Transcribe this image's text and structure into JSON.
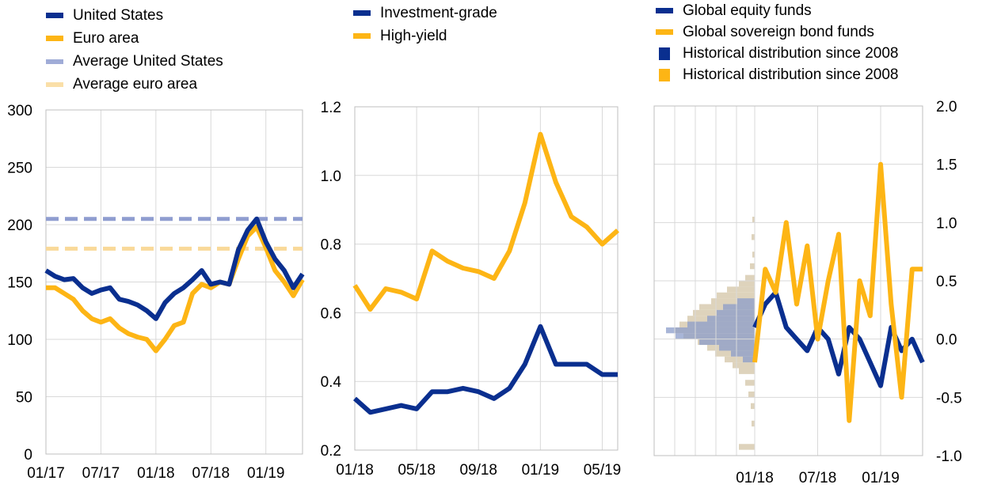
{
  "colors": {
    "us": "#0a2f8f",
    "ea": "#fdb515",
    "avg_us": "#8f9dd0",
    "avg_ea": "#f9d999",
    "hist_blue": "#8b9cc9",
    "hist_beige": "#d8cbb0",
    "grid": "#d9d9d9"
  },
  "chart_data": [
    {
      "type": "line",
      "legend": [
        "United States",
        "Euro area",
        "Average United States",
        "Average euro area"
      ],
      "ylim": [
        0,
        300
      ],
      "yticks": [
        "300",
        "250",
        "200",
        "150",
        "100",
        "50",
        "0"
      ],
      "xticks": [
        "01/17",
        "07/17",
        "01/18",
        "07/18",
        "01/19"
      ],
      "x": [
        "01/17",
        "02/17",
        "03/17",
        "04/17",
        "05/17",
        "06/17",
        "07/17",
        "08/17",
        "09/17",
        "10/17",
        "11/17",
        "12/17",
        "01/18",
        "02/18",
        "03/18",
        "04/18",
        "05/18",
        "06/18",
        "07/18",
        "08/18",
        "09/18",
        "10/18",
        "11/18",
        "12/18",
        "01/19",
        "02/19",
        "03/19",
        "04/19",
        "05/19"
      ],
      "series": [
        {
          "name": "United States",
          "values": [
            160,
            155,
            152,
            153,
            145,
            140,
            143,
            145,
            135,
            133,
            130,
            125,
            118,
            132,
            140,
            145,
            152,
            160,
            148,
            150,
            148,
            178,
            195,
            205,
            185,
            170,
            160,
            145,
            157
          ]
        },
        {
          "name": "Euro area",
          "values": [
            145,
            145,
            140,
            135,
            125,
            118,
            115,
            118,
            110,
            105,
            102,
            100,
            90,
            100,
            112,
            115,
            140,
            148,
            145,
            150,
            148,
            170,
            190,
            198,
            180,
            160,
            150,
            138,
            152
          ]
        },
        {
          "name": "Average United States",
          "values": [
            205,
            205,
            205,
            205,
            205,
            205,
            205,
            205,
            205,
            205,
            205,
            205,
            205,
            205,
            205,
            205,
            205,
            205,
            205,
            205,
            205,
            205,
            205,
            205,
            205,
            205,
            205,
            205,
            205
          ]
        },
        {
          "name": "Average euro area",
          "values": [
            179,
            179,
            179,
            179,
            179,
            179,
            179,
            179,
            179,
            179,
            179,
            179,
            179,
            179,
            179,
            179,
            179,
            179,
            179,
            179,
            179,
            179,
            179,
            179,
            179,
            179,
            179,
            179,
            179
          ]
        }
      ]
    },
    {
      "type": "line",
      "legend": [
        "Investment-grade",
        "High-yield"
      ],
      "ylim": [
        0.2,
        1.2
      ],
      "yticks": [
        "1.2",
        "1.0",
        "0.8",
        "0.6",
        "0.4",
        "0.2"
      ],
      "xticks": [
        "01/18",
        "05/18",
        "09/18",
        "01/19",
        "05/19"
      ],
      "x": [
        "01/18",
        "02/18",
        "03/18",
        "04/18",
        "05/18",
        "06/18",
        "07/18",
        "08/18",
        "09/18",
        "10/18",
        "11/18",
        "12/18",
        "01/19",
        "02/19",
        "03/19",
        "04/19",
        "05/19",
        "06/19"
      ],
      "series": [
        {
          "name": "Investment-grade",
          "values": [
            0.35,
            0.31,
            0.32,
            0.33,
            0.32,
            0.37,
            0.37,
            0.38,
            0.37,
            0.35,
            0.38,
            0.45,
            0.56,
            0.45,
            0.45,
            0.45,
            0.42,
            0.42
          ]
        },
        {
          "name": "High-yield",
          "values": [
            0.68,
            0.61,
            0.67,
            0.66,
            0.64,
            0.78,
            0.75,
            0.73,
            0.72,
            0.7,
            0.78,
            0.92,
            1.12,
            0.98,
            0.88,
            0.85,
            0.8,
            0.84
          ]
        }
      ]
    },
    {
      "type": "line",
      "legend": [
        "Global equity funds",
        "Global sovereign bond funds",
        "Historical distribution since 2008",
        "Historical distribution since 2008"
      ],
      "ylim": [
        -1.0,
        2.0
      ],
      "yticks": [
        "2.0",
        "1.5",
        "1.0",
        "0.5",
        "0.0",
        "-0.5",
        "-1.0"
      ],
      "xticks": [
        "01/18",
        "07/18",
        "01/19"
      ],
      "x": [
        "01/18",
        "02/18",
        "03/18",
        "04/18",
        "05/18",
        "06/18",
        "07/18",
        "08/18",
        "09/18",
        "10/18",
        "11/18",
        "12/18",
        "01/19",
        "02/19",
        "03/19",
        "04/19",
        "05/19"
      ],
      "series": [
        {
          "name": "Global equity funds",
          "values": [
            0.1,
            0.3,
            0.4,
            0.1,
            0.0,
            -0.1,
            0.1,
            0.0,
            -0.3,
            0.1,
            0.0,
            -0.2,
            -0.4,
            0.1,
            -0.1,
            0.0,
            -0.2
          ]
        },
        {
          "name": "Global sovereign bond funds",
          "values": [
            -0.2,
            0.6,
            0.4,
            1.0,
            0.3,
            0.8,
            0.0,
            0.5,
            0.9,
            -0.7,
            0.5,
            0.2,
            1.5,
            0.3,
            -0.5,
            0.6,
            0.6
          ]
        }
      ]
    }
  ]
}
